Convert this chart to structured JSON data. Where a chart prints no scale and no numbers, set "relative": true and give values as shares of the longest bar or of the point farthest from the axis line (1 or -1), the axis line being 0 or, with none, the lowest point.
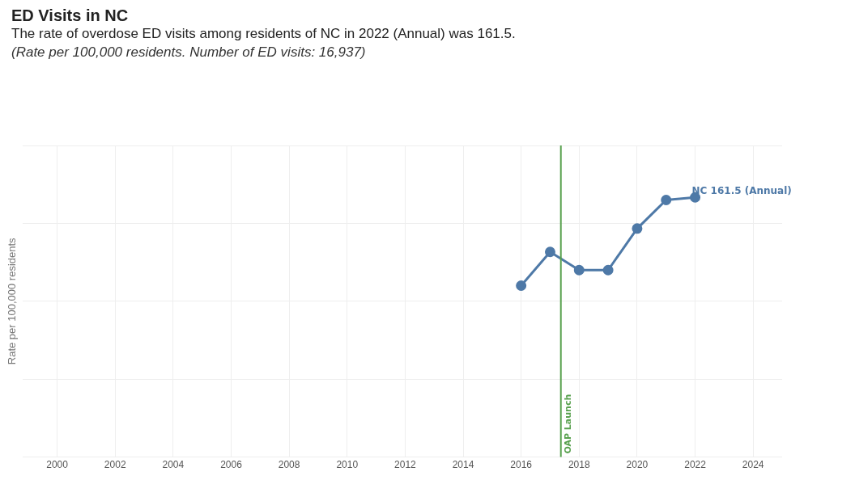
{
  "chart_data": {
    "type": "line",
    "title": "ED Visits in NC",
    "subtitle": "The rate of overdose ED visits among residents of NC in 2022 (Annual) was 161.5.",
    "annotations": [
      "(Rate per 100,000 residents. Number of ED visits: 16,937)",
      {
        "text": "NC 161.5 (Annual)",
        "x": 2022,
        "y": 1
      }
    ],
    "ylabel": "Rate per 100,000 residents",
    "relative": true,
    "x": [
      2016,
      2017,
      2018,
      2019,
      2020,
      2021,
      2022
    ],
    "series": [
      {
        "color": "#4e79a7",
        "values": [
          0.66,
          0.79,
          0.72,
          0.72,
          0.88,
          0.99,
          1
        ]
      }
    ],
    "xlim": [
      1998.8,
      2025
    ],
    "xticks": [
      2000,
      2002,
      2004,
      2006,
      2008,
      2010,
      2012,
      2014,
      2016,
      2018,
      2020,
      2022,
      2024
    ],
    "ref_lines": [
      {
        "axis": "x",
        "value": 2017.37,
        "label": "OAP Launch",
        "color": "#59a14f"
      }
    ],
    "grid": true,
    "legend": false,
    "marker": "circle",
    "line_style": "solid",
    "tick_labels": "x"
  }
}
